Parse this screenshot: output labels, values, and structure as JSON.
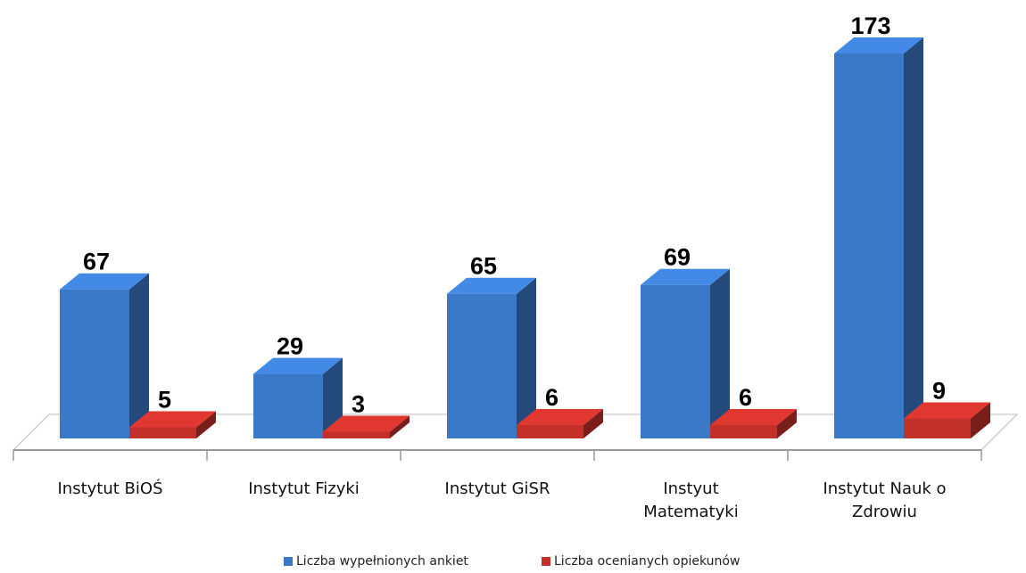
{
  "chart_data": {
    "type": "bar3d",
    "categories": [
      "Instytut BiOŚ",
      "Instytut Fizyki",
      "Instytut GiSR",
      "Instyut Matematyki",
      "Instytut Nauk o Zdrowiu"
    ],
    "series": [
      {
        "name": "Liczba wypełnionych ankiet",
        "color": "#3a78c8",
        "values": [
          67,
          29,
          65,
          69,
          173
        ]
      },
      {
        "name": "Liczba ocenianych opiekunów",
        "color": "#c3302a",
        "values": [
          5,
          3,
          6,
          6,
          9
        ]
      }
    ],
    "legend": "bottom"
  }
}
